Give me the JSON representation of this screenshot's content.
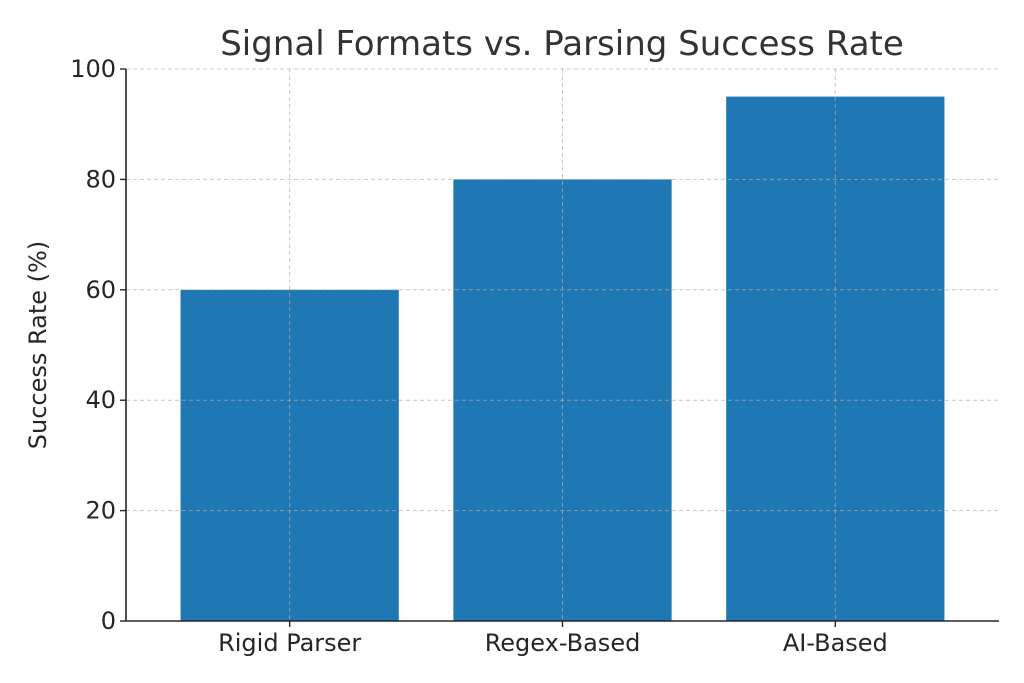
{
  "chart_data": {
    "type": "bar",
    "title": "Signal Formats vs. Parsing Success Rate",
    "xlabel": "",
    "ylabel": "Success Rate (%)",
    "categories": [
      "Rigid Parser",
      "Regex-Based",
      "AI-Based"
    ],
    "values": [
      60,
      80,
      95
    ],
    "ylim": [
      0,
      100
    ],
    "yticks": [
      0,
      20,
      40,
      60,
      80,
      100
    ],
    "grid": true,
    "bar_color": "#1f77b4"
  }
}
